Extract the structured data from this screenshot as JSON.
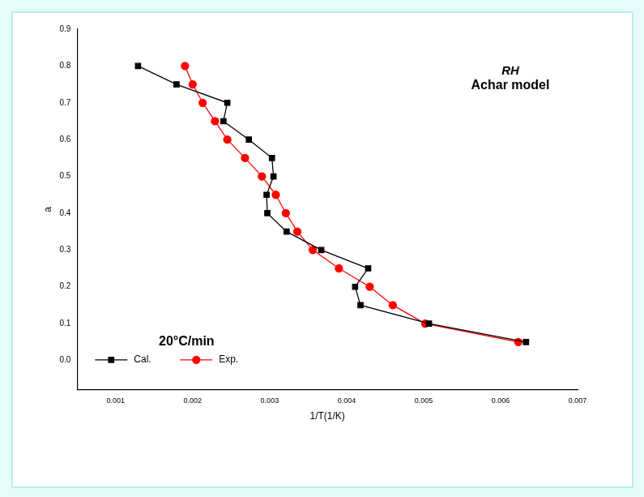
{
  "chart_data": {
    "type": "line",
    "annotations": [
      "RH",
      "Achar model",
      "20°C/min"
    ],
    "x_label": "1/T(1/K)",
    "y_label": "a",
    "xlim": [
      0.0005,
      0.007
    ],
    "xticks": [
      0.001,
      0.002,
      0.003,
      0.004,
      0.005,
      0.006,
      0.007
    ],
    "ylim": [
      -0.08,
      0.9
    ],
    "yticks": [
      {
        "value": 0,
        "label": "0.0"
      },
      0.1,
      0.2,
      0.3,
      0.4,
      0.5,
      0.6,
      0.7,
      0.8,
      0.9
    ],
    "grid": false,
    "legend": "lower left",
    "series": [
      {
        "name": "Cal.",
        "color": "#000000",
        "marker": "square",
        "line_style": "solid",
        "x": [
          0.00129,
          0.00179,
          0.00245,
          0.0024,
          0.00273,
          0.00303,
          0.00305,
          0.00296,
          0.00297,
          0.00322,
          0.00367,
          0.00428,
          0.00411,
          0.00418,
          0.00507,
          0.00633
        ],
        "values": [
          0.8,
          0.75,
          0.7,
          0.65,
          0.6,
          0.55,
          0.5,
          0.45,
          0.4,
          0.35,
          0.3,
          0.25,
          0.2,
          0.15,
          0.1,
          0.05
        ]
      },
      {
        "name": "Exp.",
        "color": "#ff0000",
        "marker": "circle",
        "line_style": "solid",
        "x": [
          0.0019,
          0.002,
          0.00213,
          0.00229,
          0.00245,
          0.00268,
          0.0029,
          0.00308,
          0.00321,
          0.00336,
          0.00356,
          0.0039,
          0.0043,
          0.0046,
          0.00502,
          0.00623
        ],
        "values": [
          0.8,
          0.75,
          0.7,
          0.65,
          0.6,
          0.55,
          0.5,
          0.45,
          0.4,
          0.35,
          0.3,
          0.25,
          0.2,
          0.15,
          0.1,
          0.05
        ]
      }
    ]
  }
}
